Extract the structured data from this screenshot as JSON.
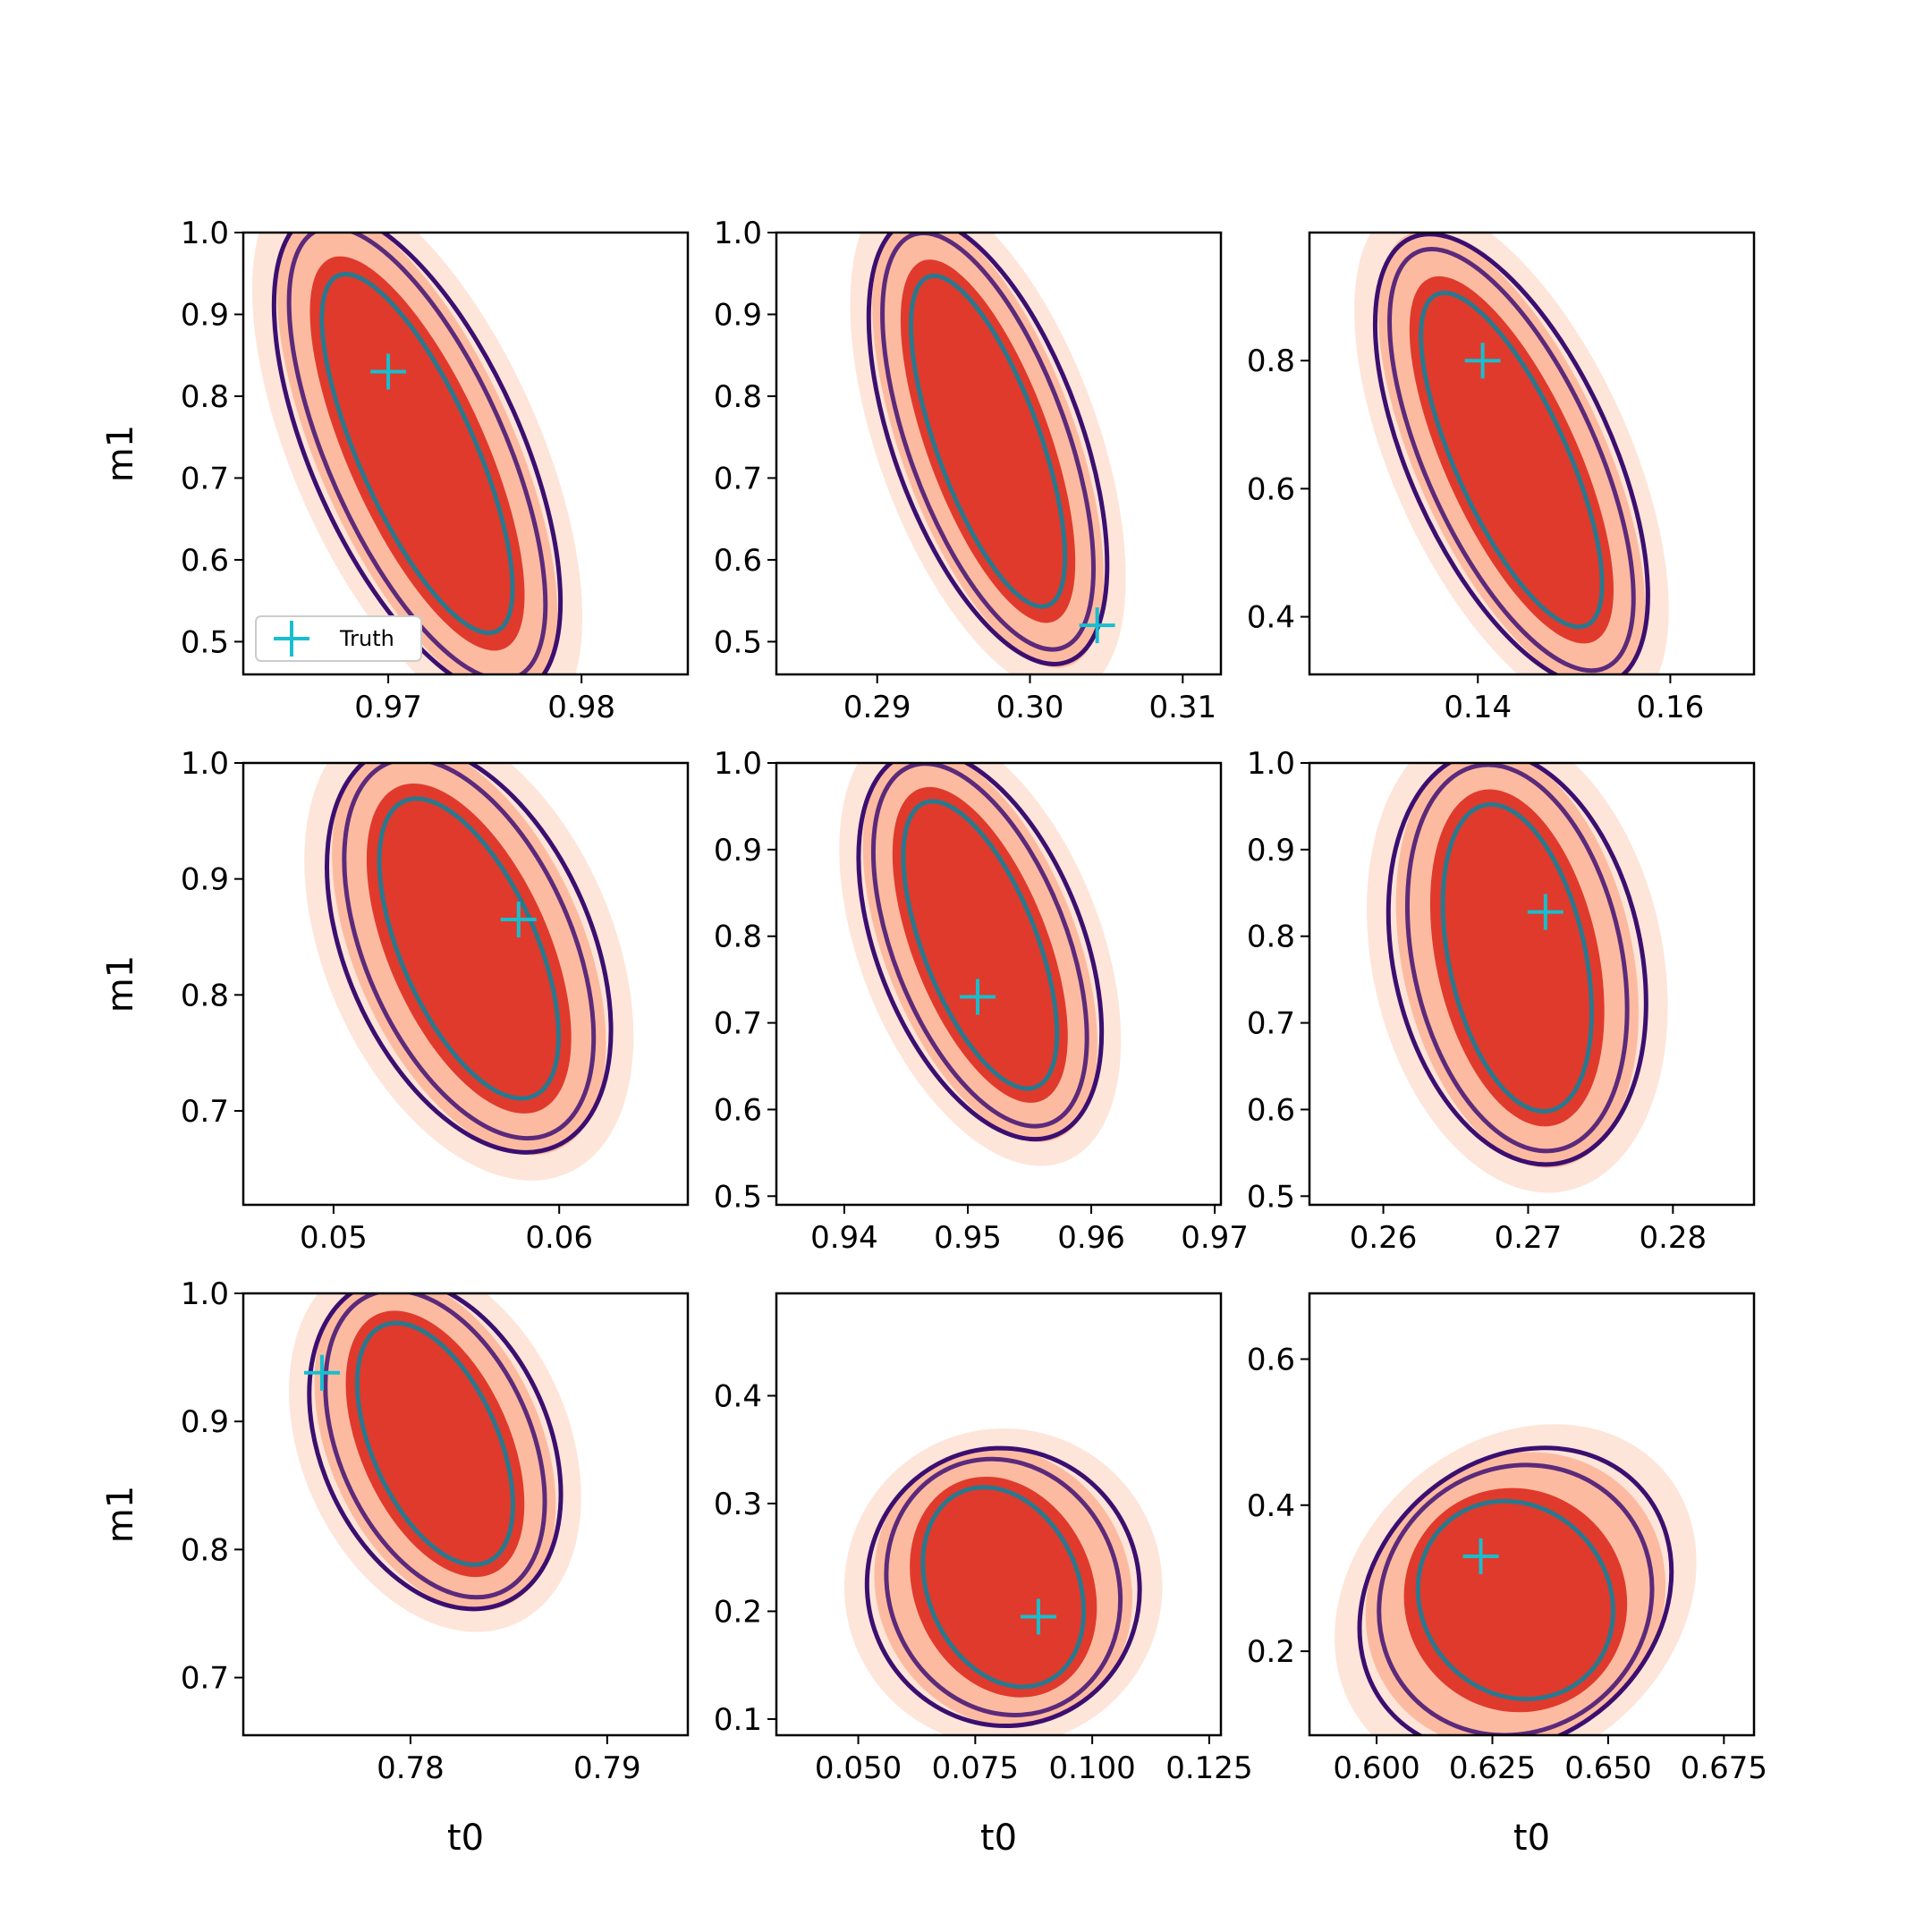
{
  "figure": {
    "legend_label": "Truth",
    "truth_color": "#17becf",
    "filled_colors": [
      "#fee5d9",
      "#fcbba1",
      "#e03a2c"
    ],
    "line_colors": [
      "#3b0f70",
      "#5c2a7a",
      "#2a788e"
    ]
  },
  "chart_data": [
    {
      "type": "contour",
      "title": "",
      "xlabel": "",
      "ylabel": "m1",
      "xlim": [
        0.9625,
        0.9855
      ],
      "ylim": [
        0.46,
        1.0
      ],
      "xticks": [
        "0.97",
        "0.98"
      ],
      "yticks": [
        "0.5",
        "0.6",
        "0.7",
        "0.8",
        "0.9",
        "1.0"
      ],
      "truth": {
        "x": 0.97,
        "y": 0.83
      },
      "legend": "lower-left",
      "posterior": {
        "top": [
          0.9665,
          0.995
        ],
        "bottom": [
          0.9765,
          0.465
        ],
        "width": 0.0075
      }
    },
    {
      "type": "contour",
      "title": "",
      "xlabel": "",
      "ylabel": "",
      "xlim": [
        0.2834,
        0.3125
      ],
      "ylim": [
        0.46,
        1.0
      ],
      "xticks": [
        "0.29",
        "0.30",
        "0.31"
      ],
      "yticks": [
        "0.5",
        "0.6",
        "0.7",
        "0.8",
        "0.9",
        "1.0"
      ],
      "truth": {
        "x": 0.3044,
        "y": 0.52
      },
      "posterior": {
        "top": [
          0.2925,
          0.99
        ],
        "bottom": [
          0.302,
          0.5
        ],
        "width": 0.0085
      }
    },
    {
      "type": "contour",
      "title": "",
      "xlabel": "",
      "ylabel": "",
      "xlim": [
        0.1225,
        0.1687
      ],
      "ylim": [
        0.31,
        1.0
      ],
      "xticks": [
        "0.14",
        "0.16"
      ],
      "yticks": [
        "0.4",
        "0.6",
        "0.8"
      ],
      "truth": {
        "x": 0.1405,
        "y": 0.8
      },
      "posterior": {
        "top": [
          0.134,
          0.96
        ],
        "bottom": [
          0.153,
          0.33
        ],
        "width": 0.0145
      }
    },
    {
      "type": "contour",
      "title": "",
      "xlabel": "",
      "ylabel": "m1",
      "xlim": [
        0.046,
        0.0657
      ],
      "ylim": [
        0.619,
        1.0
      ],
      "xticks": [
        "0.05",
        "0.06"
      ],
      "yticks": [
        "0.7",
        "0.8",
        "0.9",
        "1.0"
      ],
      "truth": {
        "x": 0.0582,
        "y": 0.865
      },
      "posterior": {
        "top": [
          0.0525,
          0.995
        ],
        "bottom": [
          0.0595,
          0.685
        ],
        "width": 0.0075
      }
    },
    {
      "type": "contour",
      "title": "",
      "xlabel": "",
      "ylabel": "",
      "xlim": [
        0.9345,
        0.9705
      ],
      "ylim": [
        0.49,
        1.0
      ],
      "xticks": [
        "0.94",
        "0.95",
        "0.96",
        "0.97"
      ],
      "yticks": [
        "0.5",
        "0.6",
        "0.7",
        "0.8",
        "0.9",
        "1.0"
      ],
      "truth": {
        "x": 0.9508,
        "y": 0.73
      },
      "posterior": {
        "top": [
          0.9455,
          0.99
        ],
        "bottom": [
          0.9565,
          0.59
        ],
        "width": 0.0115
      }
    },
    {
      "type": "contour",
      "title": "",
      "xlabel": "",
      "ylabel": "",
      "xlim": [
        0.2549,
        0.2856
      ],
      "ylim": [
        0.49,
        1.0
      ],
      "xticks": [
        "0.26",
        "0.27",
        "0.28"
      ],
      "yticks": [
        "0.5",
        "0.6",
        "0.7",
        "0.8",
        "0.9",
        "1.0"
      ],
      "truth": {
        "x": 0.2712,
        "y": 0.828
      },
      "posterior": {
        "top": [
          0.2665,
          0.99
        ],
        "bottom": [
          0.272,
          0.56
        ],
        "width": 0.0118
      }
    },
    {
      "type": "contour",
      "title": "",
      "xlabel": "t0",
      "ylabel": "m1",
      "xlim": [
        0.7715,
        0.7941
      ],
      "ylim": [
        0.655,
        1.0
      ],
      "xticks": [
        "0.78",
        "0.79"
      ],
      "yticks": [
        "0.7",
        "0.8",
        "0.9",
        "1.0"
      ],
      "truth": {
        "x": 0.7755,
        "y": 0.938
      },
      "posterior": {
        "top": [
          0.778,
          0.995
        ],
        "bottom": [
          0.7845,
          0.77
        ],
        "width": 0.008
      }
    },
    {
      "type": "contour",
      "title": "",
      "xlabel": "t0",
      "ylabel": "",
      "xlim": [
        0.0325,
        0.1275
      ],
      "ylim": [
        0.085,
        0.495
      ],
      "xticks": [
        "0.050",
        "0.075",
        "0.100",
        "0.125"
      ],
      "yticks": [
        "0.1",
        "0.2",
        "0.3",
        "0.4"
      ],
      "truth": {
        "x": 0.0885,
        "y": 0.195
      },
      "posterior": {
        "top": [
          0.07,
          0.33
        ],
        "bottom": [
          0.092,
          0.115
        ],
        "width": 0.04
      }
    },
    {
      "type": "contour",
      "title": "",
      "xlabel": "t0",
      "ylabel": "",
      "xlim": [
        0.5855,
        0.6815
      ],
      "ylim": [
        0.085,
        0.69
      ],
      "xticks": [
        "0.600",
        "0.625",
        "0.650",
        "0.675"
      ],
      "yticks": [
        "0.2",
        "0.4",
        "0.6"
      ],
      "truth": {
        "x": 0.6225,
        "y": 0.33
      },
      "posterior": {
        "top": [
          0.612,
          0.4
        ],
        "bottom": [
          0.648,
          0.14
        ],
        "width": 0.05
      }
    }
  ]
}
